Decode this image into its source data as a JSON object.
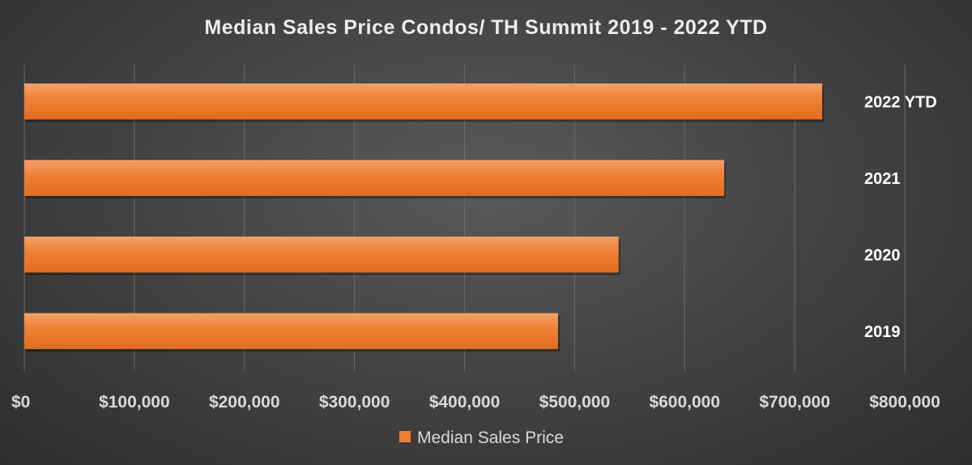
{
  "chart_data": {
    "type": "bar",
    "orientation": "horizontal",
    "title": "Median Sales Price Condos/ TH Summit 2019 - 2022 YTD",
    "categories": [
      "2022 YTD",
      "2021",
      "2020",
      "2019"
    ],
    "series": [
      {
        "name": "Median Sales Price",
        "values": [
          725000,
          636000,
          540000,
          485000
        ]
      }
    ],
    "xlim": [
      0,
      800000
    ],
    "x_ticks": [
      0,
      100000,
      200000,
      300000,
      400000,
      500000,
      600000,
      700000,
      800000
    ],
    "x_tick_labels": [
      "$0",
      "$100,000",
      "$200,000",
      "$300,000",
      "$400,000",
      "$500,000",
      "$600,000",
      "$700,000",
      "$800,000"
    ],
    "category_labels_side": "right",
    "grid": true,
    "legend_position": "bottom",
    "colors": {
      "bar": "#ed7d31",
      "bar_light": "#f59a5c",
      "bar_dark": "#d8661b",
      "background": "#3f3f3f",
      "text": "#d9d9d9"
    }
  }
}
